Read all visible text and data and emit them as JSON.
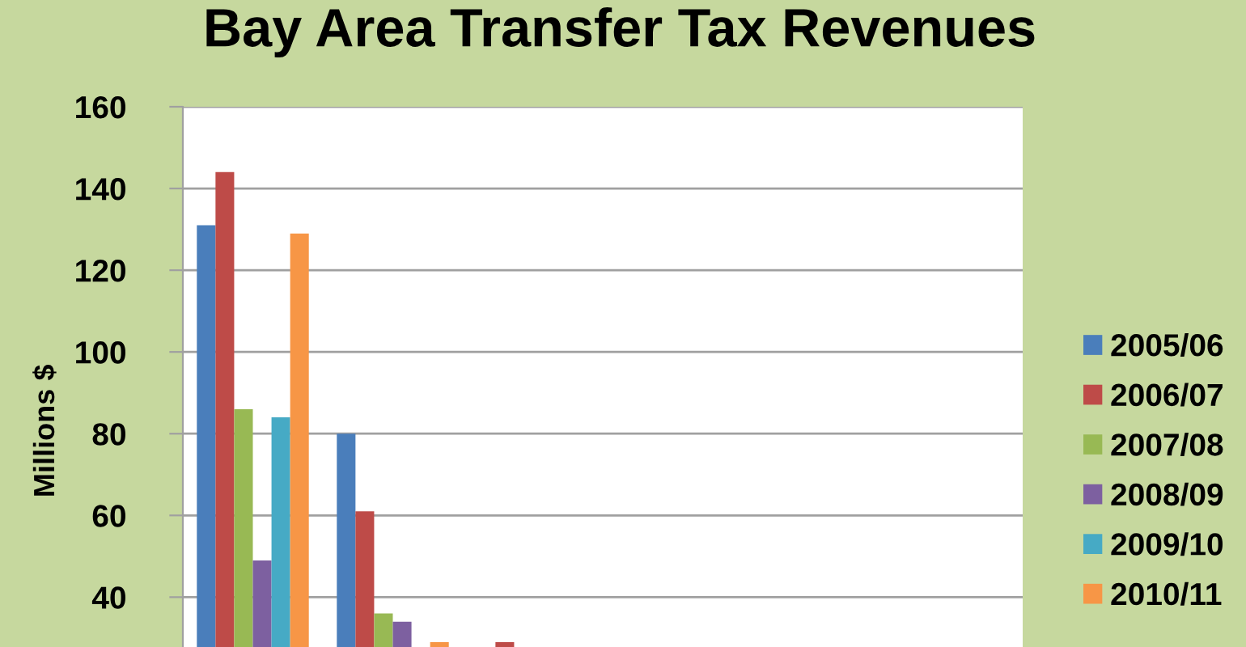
{
  "chart_data": {
    "type": "bar",
    "title": "Bay Area Transfer Tax Revenues",
    "ylabel": "Millions $",
    "categories": [
      null,
      null,
      null,
      null,
      null,
      null
    ],
    "series": [
      {
        "name": "2005/06",
        "color": "#4a7ebb",
        "values": [
          131,
          80,
          null,
          null,
          null,
          null
        ]
      },
      {
        "name": "2006/07",
        "color": "#be4b48",
        "values": [
          144,
          61,
          29,
          null,
          null,
          null
        ]
      },
      {
        "name": "2007/08",
        "color": "#98b954",
        "values": [
          86,
          36,
          null,
          null,
          null,
          null
        ]
      },
      {
        "name": "2008/09",
        "color": "#7d60a0",
        "values": [
          49,
          34,
          null,
          null,
          null,
          null
        ]
      },
      {
        "name": "2009/10",
        "color": "#46aac5",
        "values": [
          84,
          null,
          null,
          null,
          null,
          null
        ]
      },
      {
        "name": "2010/11",
        "color": "#f79646",
        "values": [
          129,
          29,
          null,
          null,
          null,
          null
        ]
      }
    ],
    "ylim": [
      27.8,
      160
    ],
    "yticks": [
      40,
      60,
      80,
      100,
      120,
      140,
      160
    ],
    "grid": "y",
    "legend": "right",
    "tick_labels": "y"
  }
}
